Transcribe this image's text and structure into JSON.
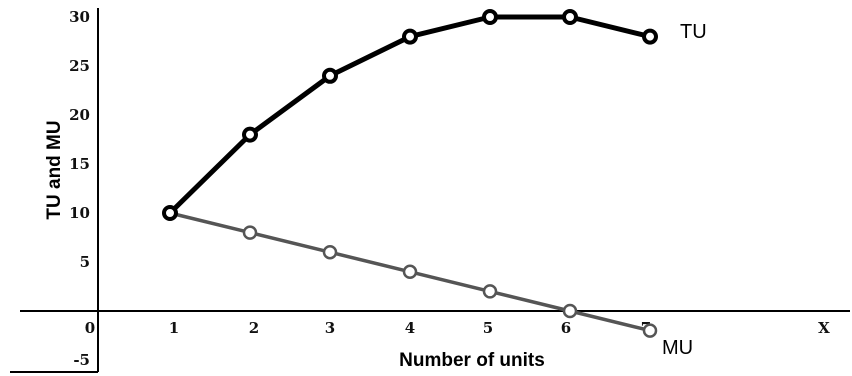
{
  "chart_data": {
    "type": "line",
    "title": "",
    "xlabel": "Number of units",
    "ylabel": "TU and MU",
    "x": [
      1,
      2,
      3,
      4,
      5,
      6,
      7
    ],
    "xlim": [
      0,
      9
    ],
    "ylim": [
      -5,
      30
    ],
    "x_ticks": [
      "0",
      "1",
      "2",
      "3",
      "4",
      "5",
      "6",
      "7",
      "X"
    ],
    "y_ticks": [
      "30",
      "25",
      "20",
      "15",
      "10",
      "5",
      "-5"
    ],
    "grid": false,
    "series": [
      {
        "name": "TU",
        "values": [
          10,
          18,
          24,
          28,
          30,
          30,
          28
        ],
        "color": "#000000"
      },
      {
        "name": "MU",
        "values": [
          10,
          8,
          6,
          4,
          2,
          0,
          -2
        ],
        "color": "#555555"
      }
    ]
  }
}
